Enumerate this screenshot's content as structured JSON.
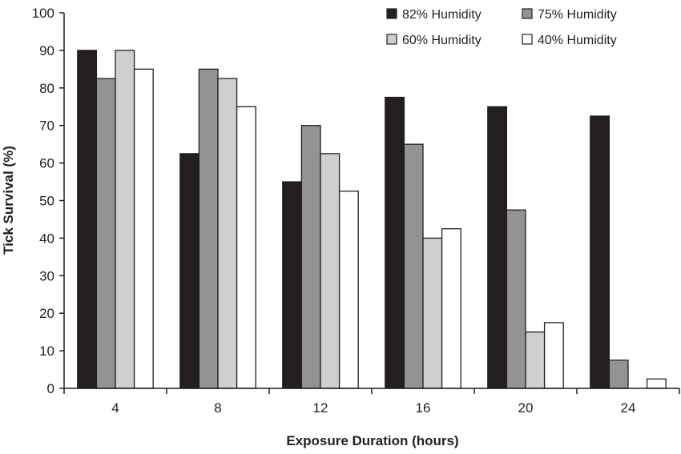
{
  "chart_data": {
    "type": "bar",
    "title": "",
    "xlabel": "Exposure Duration (hours)",
    "ylabel": "Tick Survival (%)",
    "ylim": [
      0,
      100
    ],
    "yticks": [
      0,
      10,
      20,
      30,
      40,
      50,
      60,
      70,
      80,
      90,
      100
    ],
    "categories": [
      "4",
      "8",
      "12",
      "16",
      "20",
      "24"
    ],
    "legend_position": "top-right",
    "series": [
      {
        "name": "82% Humidity",
        "color": "#231f20",
        "values": [
          90,
          62.5,
          55,
          77.5,
          75,
          72.5
        ]
      },
      {
        "name": "75% Humidity",
        "color": "#939393",
        "values": [
          82.5,
          85,
          70,
          65,
          47.5,
          7.5
        ]
      },
      {
        "name": "60% Humidity",
        "color": "#cfcfcf",
        "values": [
          90,
          82.5,
          62.5,
          40,
          15,
          0
        ]
      },
      {
        "name": "40% Humidity",
        "color": "#ffffff",
        "values": [
          85,
          75,
          52.5,
          42.5,
          17.5,
          2.5
        ]
      }
    ]
  }
}
